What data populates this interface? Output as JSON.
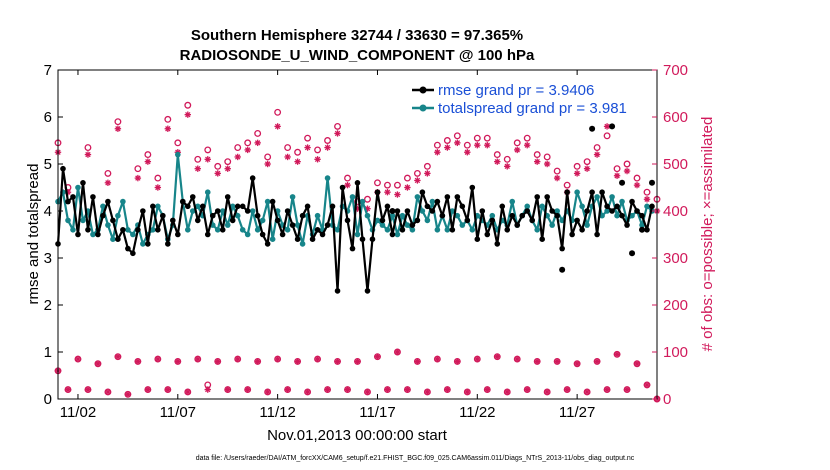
{
  "chart_data": {
    "type": "line",
    "title": "Southern Hemisphere 32744 / 33630 = 97.365%",
    "subtitle": "RADIOSONDE_U_WIND_COMPONENT @ 100 hPa",
    "xlabel": "Nov.01,2013 00:00:00 start",
    "ylabel_left": "rmse and totalspread",
    "ylabel_right": "# of obs: o=possible; ×=assimilated",
    "xlim": [
      0.5,
      30.5
    ],
    "ylim_left": [
      0,
      7
    ],
    "ylim_right": [
      0,
      700
    ],
    "xticks": [
      1.5,
      6.5,
      11.5,
      16.5,
      21.5,
      26.5
    ],
    "xtick_labels": [
      "11/02",
      "11/07",
      "11/12",
      "11/17",
      "11/22",
      "11/27"
    ],
    "yticks_left": [
      0,
      1,
      2,
      3,
      4,
      5,
      6,
      7
    ],
    "yticks_left_labels": [
      "0",
      "1",
      "2",
      "3",
      "4",
      "5",
      "6",
      "7"
    ],
    "yticks_right": [
      0,
      100,
      200,
      300,
      400,
      500,
      600,
      700
    ],
    "yticks_right_labels": [
      "0",
      "100",
      "200",
      "300",
      "400",
      "500",
      "600",
      "700"
    ],
    "grid": false,
    "legend_position": "top-right",
    "footer": "data file: /Users/raeder/DAI/ATM_forcXX/CAM6_setup/f.e21.FHIST_BGC.f09_025.CAM6assim.011/Diags_NTrS_2013-11/obs_diag_output.nc",
    "colors": {
      "rmse": "#000000",
      "spread": "#17858a",
      "obs": "#d11a5b",
      "legend_text": "#1a4fd6"
    },
    "x": [
      0.5,
      0.75,
      1,
      1.25,
      1.5,
      1.75,
      2,
      2.25,
      2.5,
      2.75,
      3,
      3.25,
      3.5,
      3.75,
      4,
      4.25,
      4.5,
      4.75,
      5,
      5.25,
      5.5,
      5.75,
      6,
      6.25,
      6.5,
      6.75,
      7,
      7.25,
      7.5,
      7.75,
      8,
      8.25,
      8.5,
      8.75,
      9,
      9.25,
      9.5,
      9.75,
      10,
      10.25,
      10.5,
      10.75,
      11,
      11.25,
      11.5,
      11.75,
      12,
      12.25,
      12.5,
      12.75,
      13,
      13.25,
      13.5,
      13.75,
      14,
      14.25,
      14.5,
      14.75,
      15,
      15.25,
      15.5,
      15.75,
      16,
      16.25,
      16.5,
      16.75,
      17,
      17.25,
      17.5,
      17.75,
      18,
      18.25,
      18.5,
      18.75,
      19,
      19.25,
      19.5,
      19.75,
      20,
      20.25,
      20.5,
      20.75,
      21,
      21.25,
      21.5,
      21.75,
      22,
      22.25,
      22.5,
      22.75,
      23,
      23.25,
      23.5,
      23.75,
      24,
      24.25,
      24.5,
      24.75,
      25,
      25.25,
      25.5,
      25.75,
      26,
      26.25,
      26.5,
      26.75,
      27,
      27.25,
      27.5,
      27.75,
      28,
      28.25,
      28.5,
      28.75,
      29,
      29.25,
      29.5,
      29.75,
      30,
      30.25
    ],
    "series": [
      {
        "name": "rmse grand pr = 3.9406",
        "axis": "left",
        "values": [
          3.3,
          4.9,
          4.2,
          4.3,
          3.5,
          4.6,
          3.6,
          4.3,
          3.5,
          3.9,
          4.2,
          3.8,
          3.4,
          3.6,
          3.2,
          3.1,
          3.6,
          4.0,
          3.3,
          4.1,
          3.6,
          3.9,
          3.3,
          3.8,
          3.5,
          4.2,
          4.1,
          4.3,
          3.8,
          4.1,
          3.5,
          3.9,
          4.0,
          3.6,
          4.3,
          3.8,
          4.1,
          4.1,
          4.0,
          4.7,
          3.9,
          3.5,
          3.3,
          4.2,
          3.8,
          3.5,
          4.0,
          3.7,
          3.4,
          3.9,
          4.1,
          3.4,
          3.6,
          3.5,
          3.7,
          4.1,
          2.3,
          4.5,
          3.8,
          3.2,
          4.6,
          3.4,
          2.3,
          3.4,
          4.4,
          3.8,
          4.1,
          3.5,
          4.0,
          3.6,
          4.0,
          3.7,
          3.8,
          4.4,
          4.1,
          4.0,
          4.2,
          3.9,
          4.3,
          3.6,
          4.3,
          4.1,
          3.8,
          4.5,
          3.4,
          4.0,
          3.5,
          3.8,
          3.3,
          4.1,
          3.6,
          3.9,
          3.7,
          3.9,
          4.0,
          3.8,
          4.3,
          3.4,
          4.3,
          4.0,
          3.9,
          3.2,
          4.4,
          3.5,
          3.8,
          3.6,
          4.0,
          4.4,
          3.5,
          4.4,
          4.1,
          4.0,
          4.1,
          3.9,
          3.7,
          4.2,
          4.0,
          3.9,
          3.6,
          4.1
        ],
        "markers": {
          "5.75": 5.75,
          "5.8": 5.8
        },
        "spikes": [
          [
            27.25,
            5.75
          ],
          [
            28.25,
            5.8
          ],
          [
            25.75,
            2.75
          ],
          [
            17.25,
            4.0
          ],
          [
            28.75,
            4.6
          ],
          [
            29.25,
            3.1
          ],
          [
            29.75,
            3.6
          ],
          [
            30.25,
            4.6
          ]
        ]
      },
      {
        "name": "totalspread grand pr = 3.981",
        "axis": "left",
        "values": [
          4.2,
          4.4,
          3.8,
          3.6,
          4.5,
          3.8,
          4.0,
          3.5,
          3.6,
          4.1,
          3.7,
          3.4,
          3.9,
          4.2,
          3.6,
          3.5,
          3.7,
          3.3,
          3.5,
          3.6,
          4.1,
          3.9,
          3.4,
          3.7,
          5.2,
          4.2,
          3.6,
          4.0,
          4.1,
          3.9,
          4.4,
          3.7,
          3.6,
          4.0,
          3.7,
          4.1,
          3.9,
          3.6,
          3.5,
          4.0,
          3.6,
          3.8,
          4.2,
          3.4,
          4.0,
          3.7,
          3.6,
          4.3,
          3.7,
          3.3,
          3.9,
          3.5,
          3.9,
          3.6,
          4.7,
          3.7,
          3.6,
          4.1,
          4.0,
          4.3,
          3.5,
          4.2,
          3.9,
          3.6,
          3.8,
          3.7,
          3.6,
          3.9,
          3.5,
          3.9,
          3.7,
          3.6,
          4.3,
          4.0,
          3.8,
          4.2,
          3.6,
          3.9,
          3.6,
          4.0,
          3.9,
          3.7,
          3.8,
          3.6,
          3.9,
          3.8,
          3.7,
          3.9,
          3.6,
          3.8,
          3.7,
          4.2,
          3.7,
          3.9,
          4.1,
          3.8,
          3.6,
          4.1,
          3.9,
          3.7,
          4.0,
          3.8,
          4.0,
          3.8,
          4.4,
          4.1,
          3.7,
          4.1,
          4.3,
          3.9,
          4.0,
          4.3,
          3.9,
          4.2,
          3.8,
          3.9,
          4.0,
          3.7,
          4.1,
          4.0
        ]
      },
      {
        "name": "obs possible",
        "axis": "right",
        "marker": "o",
        "x": [
          0.5,
          1,
          2,
          3,
          3.5,
          4.5,
          5,
          5.5,
          6,
          6.5,
          7,
          7.5,
          8,
          8.5,
          9,
          9.5,
          10,
          10.5,
          11,
          11.5,
          12,
          12.5,
          13,
          13.5,
          14,
          14.5,
          15,
          15.5,
          16,
          16.5,
          17,
          17.5,
          18,
          18.5,
          19,
          19.5,
          20,
          20.5,
          21,
          21.5,
          22,
          22.5,
          23,
          23.5,
          24,
          24.5,
          25,
          25.5,
          26,
          26.5,
          27,
          27.5,
          28,
          28.5,
          29,
          29.5,
          30,
          30.5
        ],
        "values": [
          545,
          450,
          535,
          480,
          590,
          490,
          520,
          470,
          595,
          545,
          625,
          510,
          530,
          495,
          505,
          535,
          545,
          565,
          515,
          610,
          535,
          525,
          555,
          530,
          550,
          580,
          470,
          420,
          425,
          460,
          455,
          455,
          470,
          480,
          495,
          540,
          550,
          560,
          540,
          555,
          555,
          520,
          510,
          545,
          555,
          520,
          515,
          485,
          455,
          495,
          505,
          535,
          560,
          490,
          500,
          470,
          440,
          425
        ]
      },
      {
        "name": "obs assimilated",
        "axis": "right",
        "marker": "x",
        "x": [
          0.5,
          1,
          2,
          3,
          3.5,
          4.5,
          5,
          5.5,
          6,
          6.5,
          7,
          7.5,
          8,
          8.5,
          9,
          9.5,
          10,
          10.5,
          11,
          11.5,
          12,
          12.5,
          13,
          13.5,
          14,
          14.5,
          15,
          15.5,
          16,
          16.5,
          17,
          17.5,
          18,
          18.5,
          19,
          19.5,
          20,
          20.5,
          21,
          21.5,
          22,
          22.5,
          23,
          23.5,
          24,
          24.5,
          25,
          25.5,
          26,
          26.5,
          27,
          27.5,
          28,
          28.5,
          29,
          29.5,
          30,
          30.5
        ],
        "values": [
          525,
          440,
          520,
          460,
          575,
          470,
          505,
          450,
          575,
          525,
          605,
          490,
          510,
          480,
          490,
          515,
          530,
          545,
          500,
          580,
          515,
          505,
          535,
          510,
          535,
          565,
          455,
          405,
          405,
          440,
          440,
          435,
          450,
          465,
          480,
          525,
          535,
          545,
          525,
          540,
          540,
          505,
          495,
          530,
          540,
          505,
          500,
          470,
          440,
          480,
          490,
          520,
          580,
          475,
          485,
          455,
          425,
          400
        ]
      },
      {
        "name": "obs possible low",
        "axis": "right",
        "marker": "o",
        "x": [
          0.5,
          1,
          1.5,
          2,
          2.5,
          3,
          3.5,
          4,
          4.5,
          5,
          5.5,
          6,
          6.5,
          7,
          7.5,
          8,
          8.5,
          9,
          9.5,
          10,
          10.5,
          11,
          11.5,
          12,
          12.5,
          13,
          13.5,
          14,
          14.5,
          15,
          15.5,
          16,
          16.5,
          17,
          17.5,
          18,
          18.5,
          19,
          19.5,
          20,
          20.5,
          21,
          21.5,
          22,
          22.5,
          23,
          23.5,
          24,
          24.5,
          25,
          25.5,
          26,
          26.5,
          27,
          27.5,
          28,
          28.5,
          29,
          29.5,
          30,
          30.5
        ],
        "values": [
          60,
          20,
          85,
          20,
          75,
          15,
          90,
          10,
          80,
          20,
          85,
          20,
          80,
          15,
          85,
          30,
          80,
          20,
          85,
          20,
          80,
          15,
          85,
          20,
          80,
          15,
          85,
          20,
          80,
          20,
          80,
          15,
          90,
          20,
          100,
          20,
          80,
          15,
          85,
          20,
          80,
          15,
          85,
          20,
          90,
          15,
          85,
          20,
          80,
          15,
          80,
          20,
          75,
          15,
          80,
          20,
          95,
          20,
          75,
          30,
          0
        ]
      },
      {
        "name": "obs assimilated low",
        "axis": "right",
        "marker": "x",
        "x": [
          0.5,
          1,
          1.5,
          2,
          2.5,
          3,
          3.5,
          4,
          4.5,
          5,
          5.5,
          6,
          6.5,
          7,
          7.5,
          8,
          8.5,
          9,
          9.5,
          10,
          10.5,
          11,
          11.5,
          12,
          12.5,
          13,
          13.5,
          14,
          14.5,
          15,
          15.5,
          16,
          16.5,
          17,
          17.5,
          18,
          18.5,
          19,
          19.5,
          20,
          20.5,
          21,
          21.5,
          22,
          22.5,
          23,
          23.5,
          24,
          24.5,
          25,
          25.5,
          26,
          26.5,
          27,
          27.5,
          28,
          28.5,
          29,
          29.5,
          30,
          30.5
        ],
        "values": [
          60,
          20,
          85,
          20,
          75,
          15,
          90,
          10,
          80,
          20,
          85,
          20,
          80,
          15,
          85,
          20,
          80,
          20,
          85,
          20,
          80,
          15,
          85,
          20,
          80,
          15,
          85,
          20,
          80,
          20,
          80,
          15,
          90,
          20,
          100,
          20,
          80,
          15,
          85,
          20,
          80,
          15,
          85,
          20,
          90,
          15,
          85,
          20,
          80,
          15,
          80,
          20,
          75,
          15,
          80,
          20,
          95,
          20,
          75,
          30,
          0
        ]
      }
    ]
  }
}
